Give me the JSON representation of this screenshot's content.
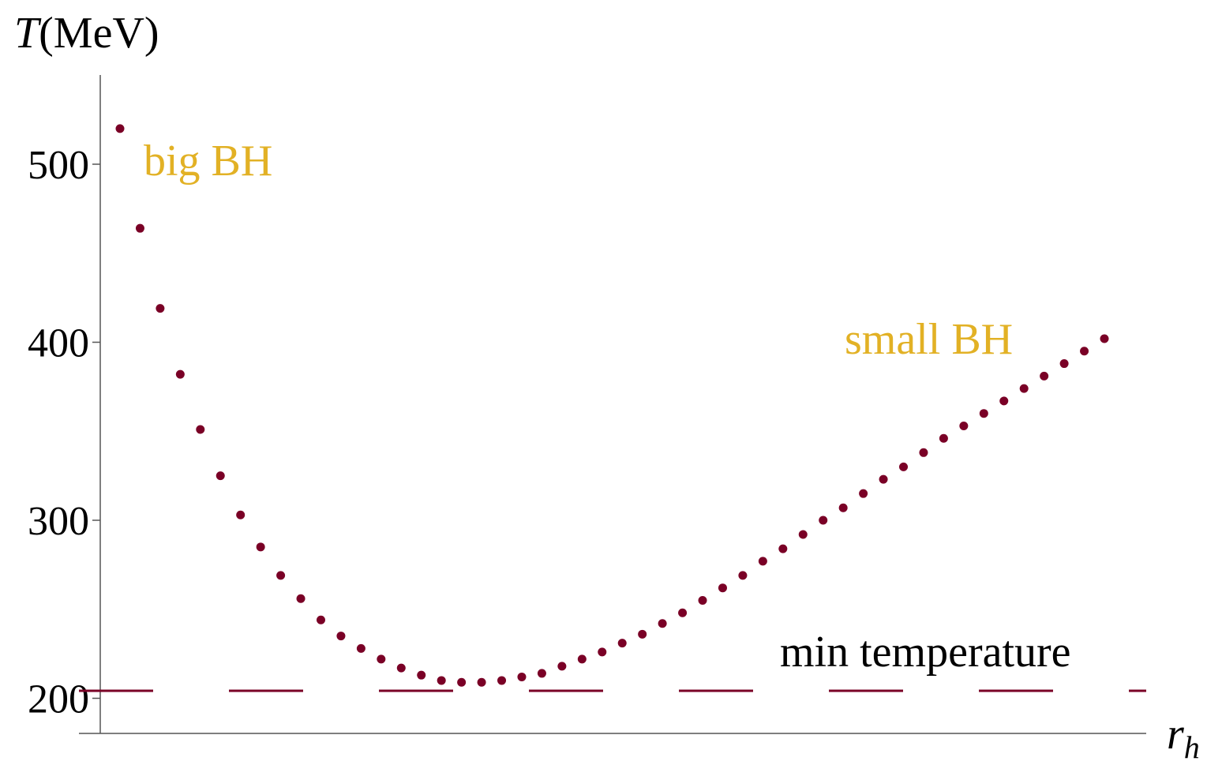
{
  "chart_data": {
    "type": "scatter",
    "ylabel_var": "T",
    "ylabel_unit": "(MeV)",
    "xlabel_var": "r",
    "xlabel_sub": "h",
    "yticks": [
      200,
      300,
      400,
      500
    ],
    "ylim": [
      180,
      545
    ],
    "xlim": [
      0,
      52
    ],
    "grid": false,
    "legend": "none",
    "series": [
      {
        "color": "#7a0026",
        "marker": "dot",
        "x": [
          1,
          2,
          3,
          4,
          5,
          6,
          7,
          8,
          9,
          10,
          11,
          12,
          13,
          14,
          15,
          16,
          17,
          18,
          19,
          20,
          21,
          22,
          23,
          24,
          25,
          26,
          27,
          28,
          29,
          30,
          31,
          32,
          33,
          34,
          35,
          36,
          37,
          38,
          39,
          40,
          41,
          42,
          43,
          44,
          45,
          46,
          47,
          48,
          49,
          50
        ],
        "y": [
          520,
          464,
          419,
          382,
          351,
          325,
          303,
          285,
          269,
          256,
          244,
          235,
          228,
          222,
          217,
          213,
          210,
          209,
          209,
          210,
          212,
          214,
          218,
          222,
          226,
          231,
          236,
          242,
          248,
          255,
          262,
          269,
          277,
          284,
          292,
          300,
          307,
          315,
          323,
          330,
          338,
          346,
          353,
          360,
          367,
          374,
          381,
          388,
          395,
          402
        ]
      }
    ],
    "reference_line": {
      "y": 206,
      "style": "dashed",
      "color": "#7a0026",
      "label": "min temperature",
      "label_color": "#000000"
    },
    "annotations": [
      {
        "text": "big BH",
        "color": "#e2b125"
      },
      {
        "text": "small BH",
        "color": "#e2b125"
      }
    ]
  },
  "colors": {
    "axis": "#000000",
    "points": "#7a0026",
    "annotation_gold": "#e2b125"
  }
}
